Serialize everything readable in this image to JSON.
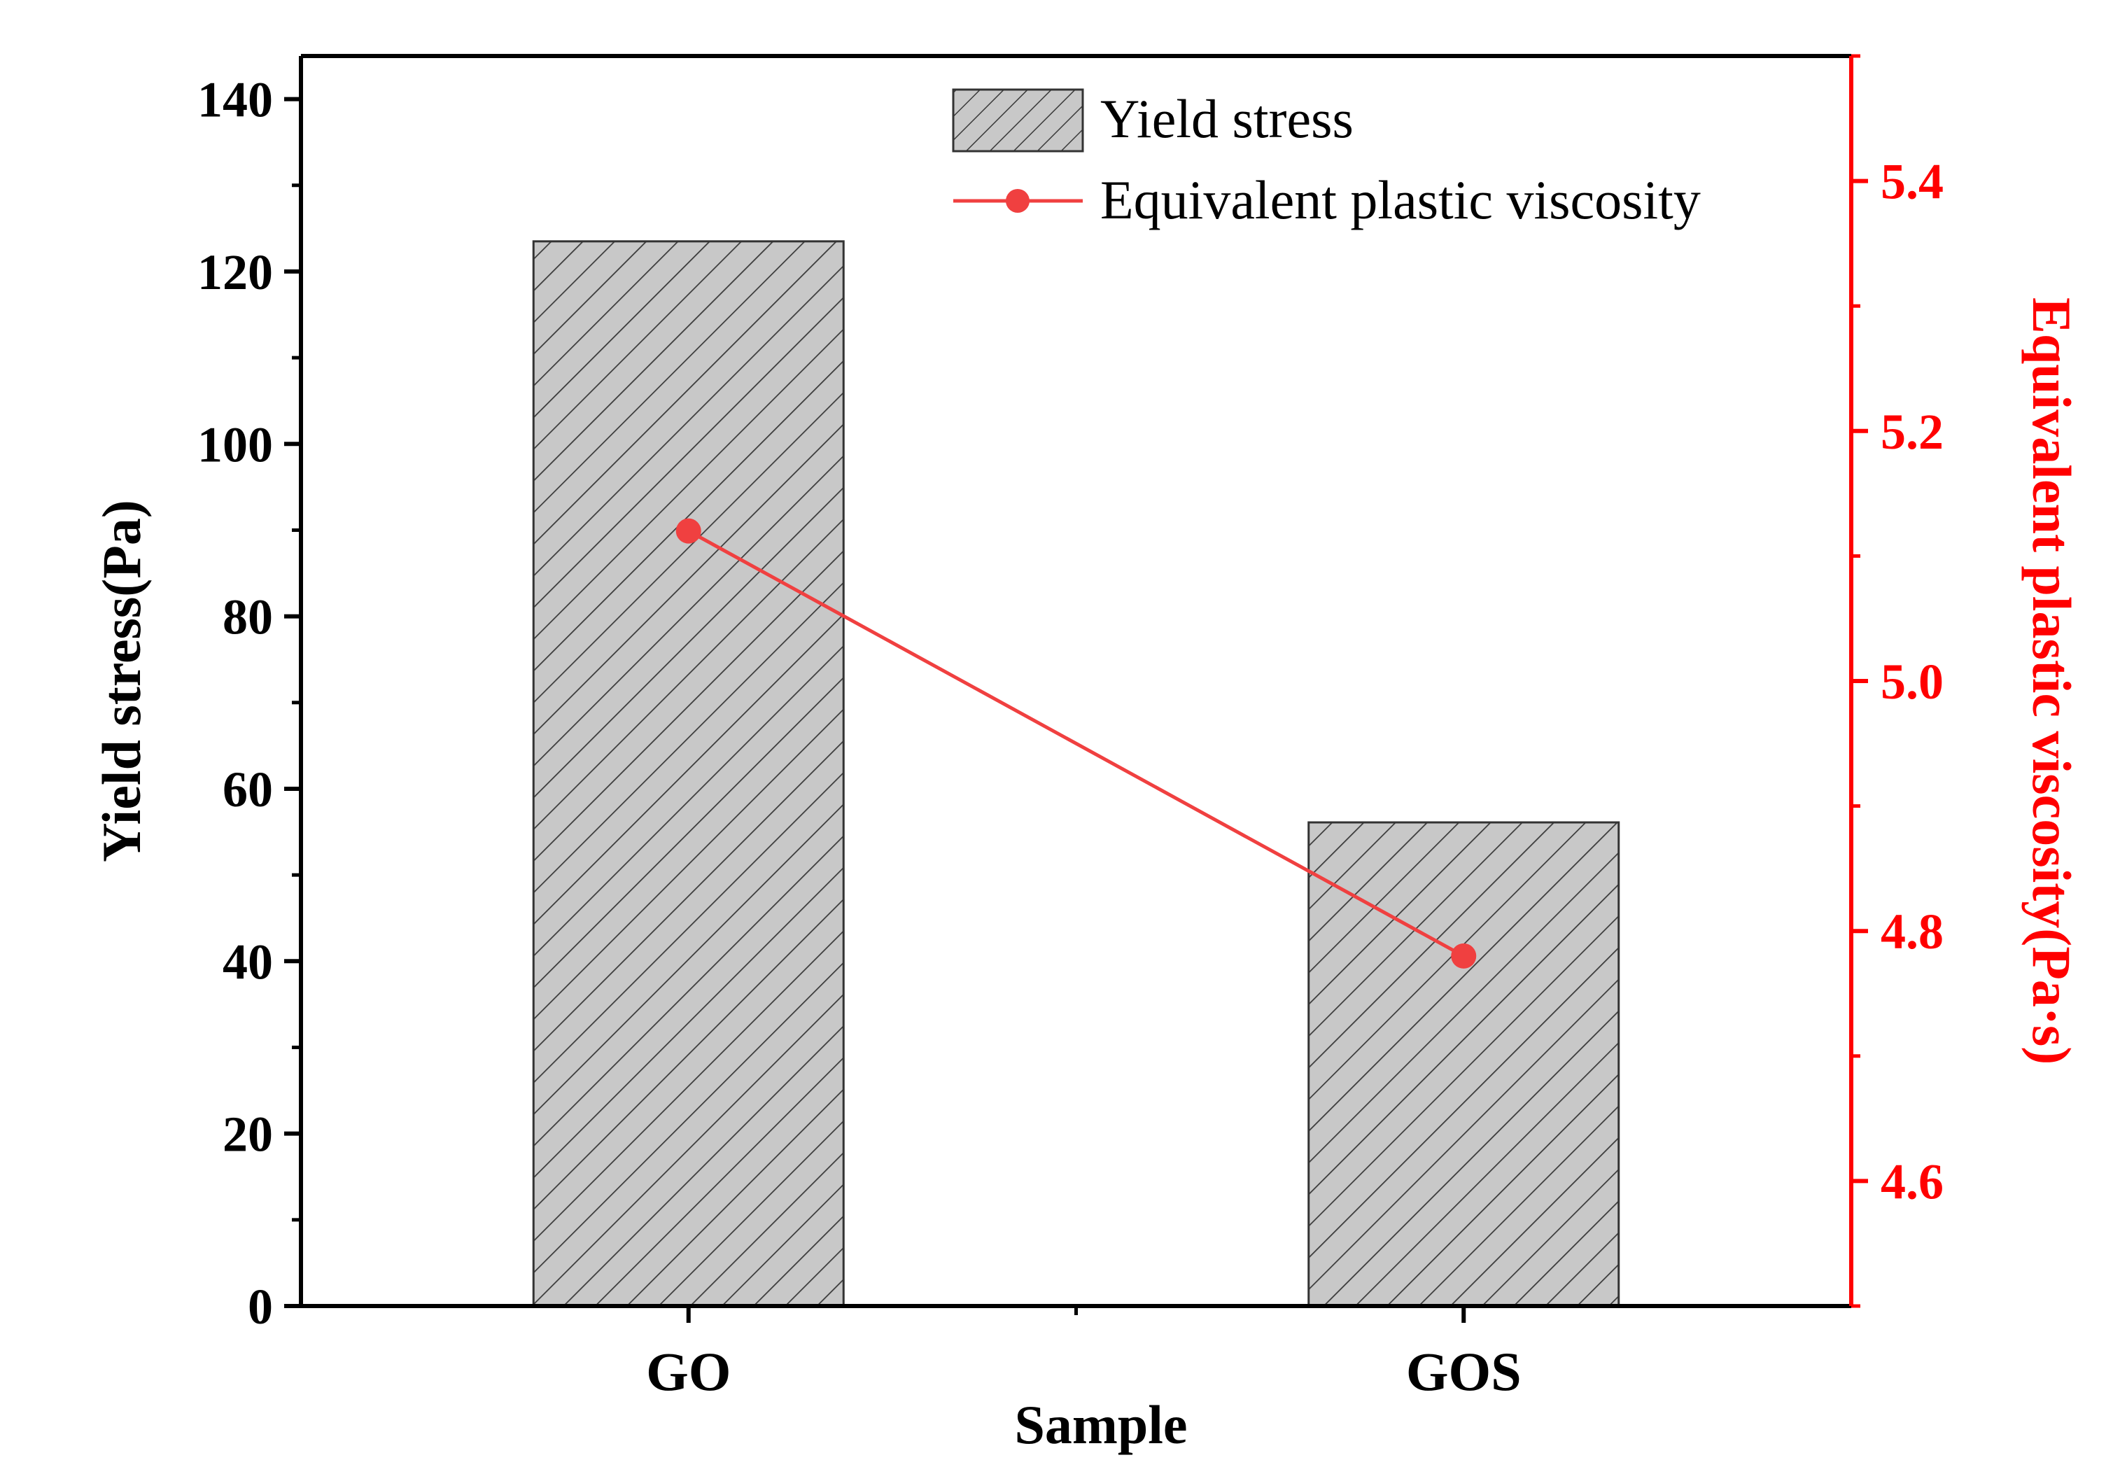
{
  "chart_data": {
    "type": "bar+line",
    "xlabel": "Sample",
    "categories": [
      "GO",
      "GOS"
    ],
    "left_axis": {
      "label": "Yield stress(Pa)",
      "ylim": [
        0,
        145
      ],
      "major_ticks": [
        0,
        20,
        40,
        60,
        80,
        100,
        120,
        140
      ],
      "tick_labels": [
        "0",
        "20",
        "40",
        "60",
        "80",
        "100",
        "120",
        "140"
      ]
    },
    "right_axis": {
      "label": "Equivalent plastic viscosity(Pa·s)",
      "ylim": [
        4.5,
        5.5
      ],
      "major_ticks": [
        4.6,
        4.8,
        5.0,
        5.2,
        5.4
      ],
      "tick_labels": [
        "4.6",
        "4.8",
        "5.0",
        "5.2",
        "5.4"
      ]
    },
    "series": [
      {
        "name": "Yield stress",
        "type": "bar",
        "axis": "left",
        "values": [
          123.5,
          56.1
        ],
        "fill": "#c8c8c8",
        "pattern": "diagonal-hatch",
        "stroke": "#333333"
      },
      {
        "name": "Equivalent plastic viscosity",
        "type": "line",
        "axis": "right",
        "values": [
          5.12,
          4.78
        ],
        "color": "#f04040"
      }
    ],
    "legend_position": "top-right",
    "colors": {
      "axis": "#000000",
      "right_axis": "#ff0000",
      "line": "#f04040"
    }
  }
}
